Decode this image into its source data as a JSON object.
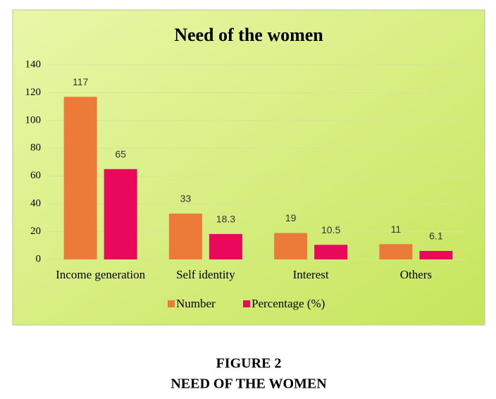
{
  "chart_data": {
    "type": "bar",
    "title": "Need of the women",
    "categories": [
      "Income generation",
      "Self identity",
      "Interest",
      "Others"
    ],
    "series": [
      {
        "name": "Number",
        "color": "#ec7b3a",
        "values": [
          117,
          33,
          19,
          11
        ]
      },
      {
        "name": "Percentage (%)",
        "color": "#e8085c",
        "values": [
          65,
          18.3,
          10.5,
          6.1
        ]
      }
    ],
    "ylim": [
      0,
      140
    ],
    "yticks": [
      0,
      20,
      40,
      60,
      80,
      100,
      120,
      140
    ],
    "grid": true,
    "legend": "bottom"
  },
  "figure": {
    "label": "FIGURE 2",
    "caption": "NEED OF THE WOMEN"
  }
}
